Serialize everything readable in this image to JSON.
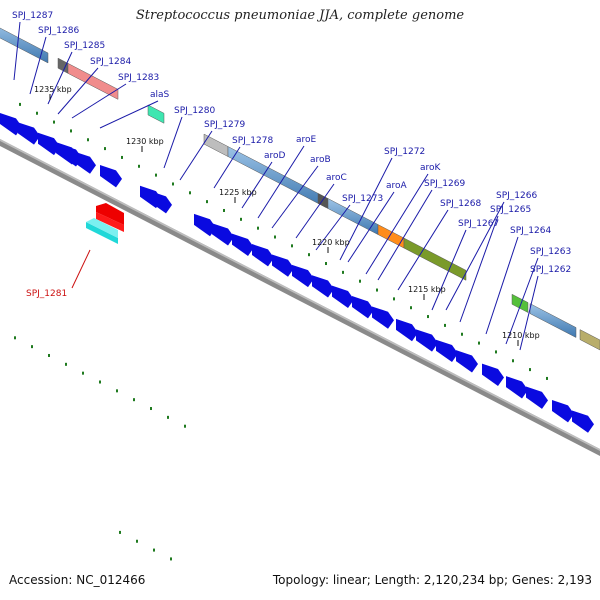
{
  "title": "Streptococcus pneumoniae JJA, complete genome",
  "footer": {
    "accession": "Accession: NC_012466",
    "summary": "Topology: linear; Length: 2,120,234 bp; Genes: 2,193"
  },
  "ticks": [
    "1235 kbp",
    "1230 kbp",
    "1225 kbp",
    "1220 kbp",
    "1215 kbp",
    "1210 kbp"
  ],
  "gene_labels": [
    "SPJ_1287",
    "SPJ_1286",
    "SPJ_1285",
    "SPJ_1284",
    "SPJ_1283",
    "alaS",
    "SPJ_1280",
    "SPJ_1279",
    "SPJ_1278",
    "aroD",
    "aroE",
    "aroB",
    "aroC",
    "SPJ_1273",
    "SPJ_1272",
    "aroA",
    "aroK",
    "SPJ_1269",
    "SPJ_1268",
    "SPJ_1267",
    "SPJ_1266",
    "SPJ_1265",
    "SPJ_1264",
    "SPJ_1263",
    "SPJ_1262"
  ],
  "highlight_label": "SPJ_1281",
  "colors": {
    "arrow": "#0a0ae0",
    "backbone": "#8a8a8a",
    "dots": "#1f7a1f",
    "label": "#1a1aa8",
    "highlight": "#cc1111"
  }
}
